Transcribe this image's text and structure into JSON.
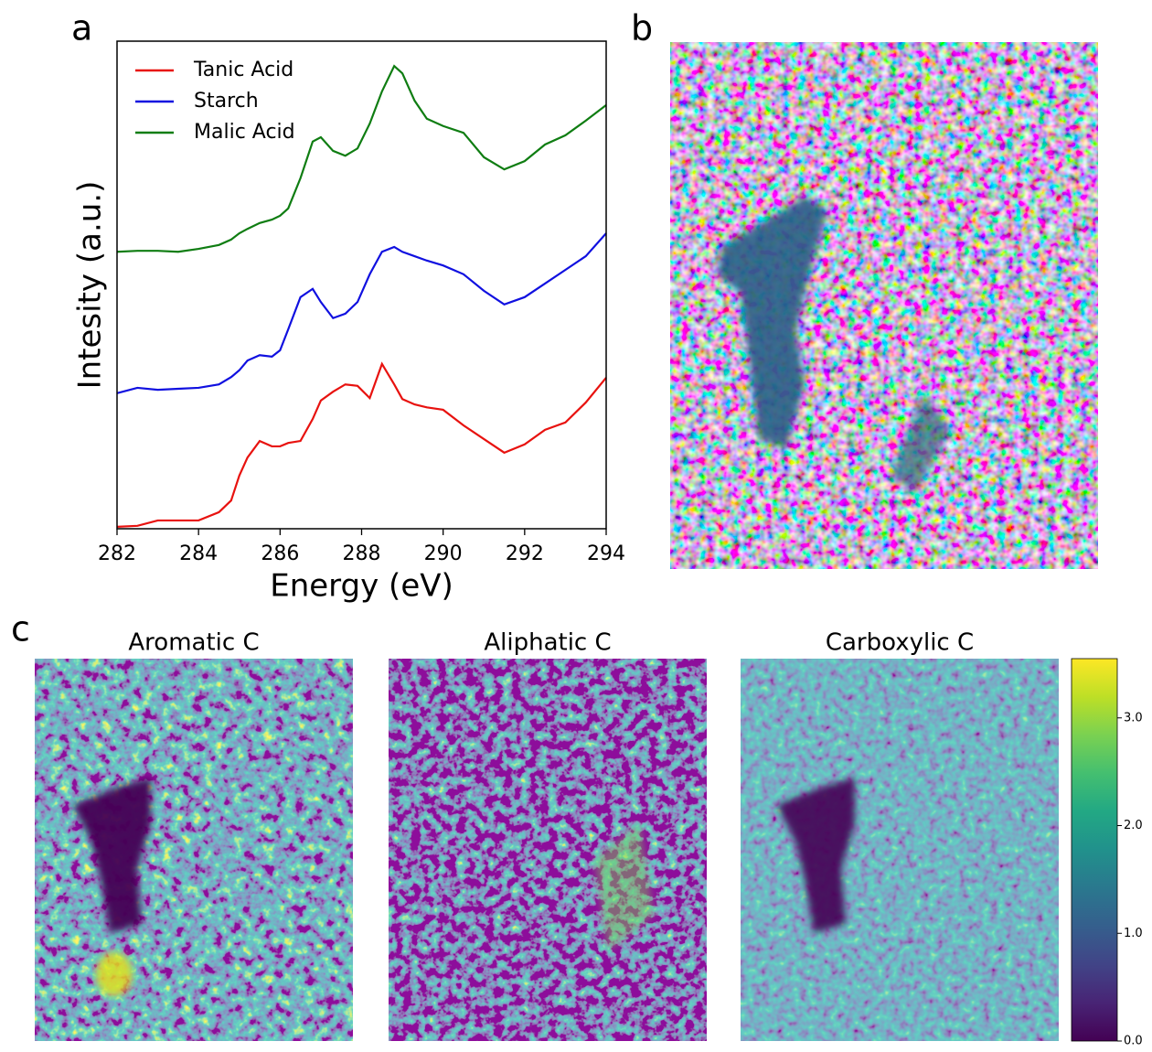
{
  "panel_labels": [
    "a",
    "b",
    "c"
  ],
  "chart_data": [
    {
      "type": "line",
      "xlabel": "Energy (eV)",
      "ylabel": "Intesity (a.u.)",
      "xlim": [
        282,
        294
      ],
      "xticks": [
        282,
        284,
        286,
        288,
        290,
        292,
        294
      ],
      "ylim": [
        0,
        100
      ],
      "legend": "upper left",
      "x": [
        282,
        282.5,
        283,
        283.5,
        284,
        284.5,
        284.8,
        285,
        285.2,
        285.5,
        285.8,
        286,
        286.2,
        286.5,
        286.8,
        287,
        287.3,
        287.6,
        287.9,
        288.2,
        288.5,
        288.8,
        289,
        289.3,
        289.6,
        290,
        290.5,
        291,
        291.5,
        292,
        292.5,
        293,
        293.5,
        294
      ],
      "series": [
        {
          "name": "Tanic Acid",
          "color": "#e8120f",
          "values": [
            0.4,
            0.6,
            1.7,
            1.7,
            1.7,
            3.4,
            5.8,
            10.9,
            14.6,
            18.0,
            16.9,
            16.9,
            17.6,
            18.0,
            22.5,
            26.3,
            28.1,
            29.6,
            29.3,
            26.8,
            33.8,
            29.6,
            26.6,
            25.5,
            24.9,
            24.4,
            21.2,
            18.4,
            15.6,
            17.3,
            20.3,
            21.8,
            25.9,
            31.0
          ]
        },
        {
          "name": "Starch",
          "color": "#1010e0",
          "values": [
            27.8,
            28.9,
            28.5,
            28.7,
            28.9,
            29.6,
            31.1,
            32.5,
            34.5,
            35.6,
            35.3,
            36.6,
            40.9,
            47.5,
            49.2,
            46.5,
            43.2,
            44.1,
            46.5,
            52.2,
            56.8,
            57.8,
            56.8,
            55.9,
            55.0,
            54.0,
            52.2,
            48.8,
            46.0,
            47.5,
            50.3,
            53.1,
            55.9,
            60.6
          ]
        },
        {
          "name": "Malic Acid",
          "color": "#0f7d12",
          "values": [
            56.8,
            57.0,
            57.0,
            56.8,
            57.4,
            58.2,
            59.3,
            60.6,
            61.5,
            62.7,
            63.4,
            64.2,
            65.7,
            71.9,
            79.4,
            80.3,
            77.5,
            76.5,
            78.0,
            83.1,
            89.7,
            94.9,
            93.4,
            87.8,
            84.1,
            82.6,
            81.2,
            76.2,
            73.7,
            75.4,
            78.8,
            80.7,
            83.7,
            86.9
          ]
        }
      ]
    },
    {
      "type": "heatmap",
      "titles": [
        "Aromatic C",
        "Aliphatic C",
        "Carboxylic C"
      ],
      "colormap": "viridis",
      "clim": [
        0,
        3.55
      ],
      "cticks": [
        {
          "value": 0,
          "label": "0.0"
        },
        {
          "value": 1,
          "label": "1.0"
        },
        {
          "value": 2,
          "label": "2.0"
        },
        {
          "value": 3,
          "label": "3.0"
        }
      ]
    }
  ]
}
